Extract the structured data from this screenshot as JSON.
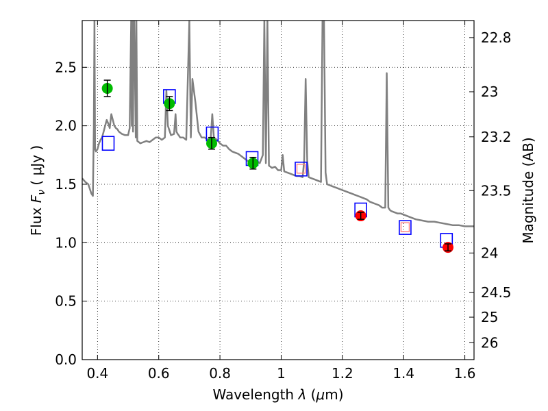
{
  "chart_data": {
    "type": "scatter",
    "xlabel_prefix": "Wavelength  ",
    "xlabel_symbol": "λ",
    "xlabel_unit_open": " (",
    "xlabel_unit_mu": "μ",
    "xlabel_unit_close": "m)",
    "ylabel_prefix": "Flux  ",
    "ylabel_symbol": "F",
    "ylabel_subscript": "ν",
    "ylabel_unit": "  ( μJy )",
    "y2label": "Magnitude (AB)",
    "xlim": [
      0.35,
      1.63
    ],
    "ylim": [
      0.0,
      2.9
    ],
    "xticks": [
      "0.4",
      "0.6",
      "0.8",
      "1",
      "1.2",
      "1.4",
      "1.6"
    ],
    "xtick_values": [
      0.4,
      0.6,
      0.8,
      1.0,
      1.2,
      1.4,
      1.6
    ],
    "yticks": [
      "0.0",
      "0.5",
      "1.0",
      "1.5",
      "2.0",
      "2.5"
    ],
    "ytick_values": [
      0.0,
      0.5,
      1.0,
      1.5,
      2.0,
      2.5
    ],
    "y2ticks": [
      "22.8",
      "23",
      "23.2",
      "23.5",
      "24",
      "24.5",
      "25",
      "26"
    ],
    "y2tick_values": [
      22.8,
      23.0,
      23.2,
      23.5,
      24.0,
      24.5,
      25.0,
      26.0
    ],
    "grid": true,
    "colors": {
      "model": "#808080",
      "optical": "#00bb00",
      "infrared": "#ff0000",
      "model_band": "#0000ff",
      "model_band_inner": "#ff8080"
    },
    "series": [
      {
        "kind": "model_spectrum",
        "x": [
          0.35,
          0.36,
          0.37,
          0.38,
          0.385,
          0.388,
          0.39,
          0.392,
          0.395,
          0.4,
          0.405,
          0.41,
          0.415,
          0.42,
          0.425,
          0.43,
          0.435,
          0.44,
          0.445,
          0.45,
          0.455,
          0.46,
          0.465,
          0.47,
          0.48,
          0.49,
          0.5,
          0.505,
          0.51,
          0.512,
          0.514,
          0.516,
          0.518,
          0.52,
          0.525,
          0.527,
          0.53,
          0.54,
          0.55,
          0.56,
          0.57,
          0.58,
          0.59,
          0.6,
          0.61,
          0.62,
          0.625,
          0.63,
          0.64,
          0.65,
          0.655,
          0.658,
          0.662,
          0.665,
          0.67,
          0.68,
          0.69,
          0.7,
          0.705,
          0.71,
          0.72,
          0.73,
          0.74,
          0.75,
          0.76,
          0.77,
          0.775,
          0.78,
          0.79,
          0.8,
          0.81,
          0.82,
          0.83,
          0.84,
          0.85,
          0.86,
          0.87,
          0.88,
          0.89,
          0.9,
          0.91,
          0.92,
          0.93,
          0.94,
          0.945,
          0.95,
          0.955,
          0.96,
          0.97,
          0.98,
          0.99,
          1.0,
          1.005,
          1.01,
          1.02,
          1.03,
          1.04,
          1.05,
          1.06,
          1.07,
          1.075,
          1.08,
          1.085,
          1.09,
          1.1,
          1.11,
          1.12,
          1.13,
          1.135,
          1.14,
          1.145,
          1.15,
          1.16,
          1.17,
          1.18,
          1.19,
          1.2,
          1.21,
          1.22,
          1.23,
          1.24,
          1.25,
          1.26,
          1.27,
          1.28,
          1.29,
          1.3,
          1.31,
          1.32,
          1.33,
          1.34,
          1.345,
          1.35,
          1.355,
          1.36,
          1.37,
          1.38,
          1.39,
          1.4,
          1.42,
          1.44,
          1.46,
          1.48,
          1.5,
          1.52,
          1.54,
          1.56,
          1.58,
          1.6,
          1.63
        ],
        "y": [
          1.55,
          1.52,
          1.5,
          1.42,
          1.4,
          2.0,
          2.9,
          1.8,
          1.78,
          1.8,
          1.85,
          1.88,
          1.9,
          1.95,
          2.0,
          2.05,
          2.02,
          1.98,
          2.1,
          2.05,
          2.0,
          1.98,
          1.97,
          1.95,
          1.93,
          1.92,
          1.92,
          1.98,
          2.9,
          2.0,
          2.9,
          1.95,
          2.9,
          2.9,
          1.9,
          2.9,
          1.87,
          1.85,
          1.86,
          1.87,
          1.86,
          1.88,
          1.9,
          1.9,
          1.88,
          1.9,
          2.3,
          2.0,
          1.92,
          1.93,
          2.1,
          1.95,
          1.93,
          1.92,
          1.9,
          1.9,
          1.88,
          2.9,
          1.9,
          2.4,
          2.2,
          1.95,
          1.9,
          1.9,
          1.88,
          1.9,
          2.1,
          1.9,
          1.88,
          1.85,
          1.83,
          1.83,
          1.8,
          1.78,
          1.77,
          1.76,
          1.74,
          1.72,
          1.7,
          1.7,
          1.7,
          1.7,
          1.68,
          1.75,
          2.9,
          1.68,
          2.9,
          1.66,
          1.64,
          1.65,
          1.62,
          1.62,
          1.75,
          1.61,
          1.6,
          1.59,
          1.58,
          1.57,
          1.57,
          1.56,
          1.7,
          2.4,
          1.7,
          1.56,
          1.55,
          1.54,
          1.53,
          1.52,
          2.9,
          2.9,
          1.6,
          1.5,
          1.49,
          1.48,
          1.47,
          1.46,
          1.45,
          1.44,
          1.43,
          1.42,
          1.41,
          1.4,
          1.39,
          1.38,
          1.37,
          1.35,
          1.34,
          1.33,
          1.32,
          1.3,
          1.3,
          2.45,
          1.3,
          1.28,
          1.27,
          1.26,
          1.25,
          1.25,
          1.24,
          1.22,
          1.2,
          1.19,
          1.18,
          1.18,
          1.17,
          1.16,
          1.15,
          1.15,
          1.14,
          1.14
        ]
      },
      {
        "kind": "model_band",
        "name": "",
        "x": [
          0.435,
          0.635,
          0.775,
          0.905,
          1.065,
          1.26,
          1.405,
          1.54
        ],
        "y": [
          1.85,
          2.25,
          1.93,
          1.72,
          1.63,
          1.28,
          1.13,
          1.02
        ],
        "inner": [
          false,
          false,
          false,
          false,
          true,
          false,
          true,
          false
        ]
      },
      {
        "kind": "observed",
        "group": "optical",
        "x": [
          0.432,
          0.635,
          0.773,
          0.908
        ],
        "y": [
          2.32,
          2.19,
          1.85,
          1.68
        ],
        "yerr": [
          0.07,
          0.06,
          0.05,
          0.05
        ]
      },
      {
        "kind": "observed",
        "group": "infrared",
        "x": [
          1.26,
          1.545
        ],
        "y": [
          1.23,
          0.96
        ],
        "yerr": [
          0.03,
          0.03
        ]
      }
    ]
  }
}
